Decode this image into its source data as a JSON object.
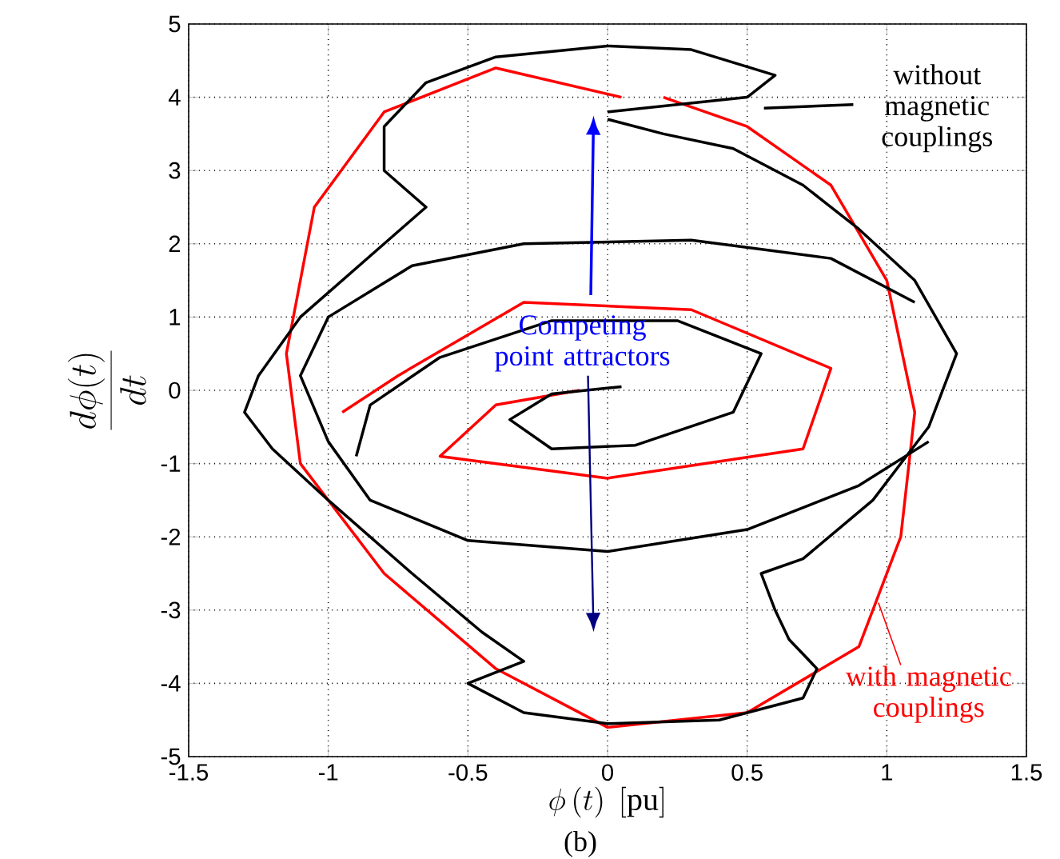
{
  "chart_data": {
    "type": "line",
    "xlabel": "\\phi\\left(t\\right)\\ [\\mathrm{pu}]",
    "ylabel": "\\frac{d\\phi(t)}{dt}",
    "xlim": [
      -1.5,
      1.5
    ],
    "ylim": [
      -5,
      5
    ],
    "xticks": [
      -1.5,
      -1,
      -0.5,
      0,
      0.5,
      1,
      1.5
    ],
    "yticks": [
      -5,
      -4,
      -3,
      -2,
      -1,
      0,
      1,
      2,
      3,
      4,
      5
    ],
    "grid": true,
    "line_style": "solid",
    "annotations": [
      "without magnetic couplings",
      {
        "text": "with magnetic couplings",
        "x": 0.97,
        "y": -2.9
      },
      "Competing point attractors",
      "(b)"
    ],
    "series": [
      {
        "color": "#ff0000",
        "x": [
          0.05,
          -0.4,
          -0.8,
          -1.05,
          -1.15,
          -1.1,
          -0.8,
          -0.4,
          0,
          0.5,
          0.9,
          1.05,
          1.1,
          1.0,
          0.8,
          0.5,
          0.2,
          null,
          -0.95,
          -0.75,
          -0.3,
          0.3,
          0.8,
          0.7,
          0,
          -0.6,
          -0.4,
          -0.1
        ],
        "values": [
          4.0,
          4.4,
          3.8,
          2.5,
          0.5,
          -1.0,
          -2.5,
          -3.8,
          -4.6,
          -4.4,
          -3.5,
          -2.0,
          -0.3,
          1.5,
          2.8,
          3.6,
          4.0,
          null,
          -0.3,
          0.2,
          1.2,
          1.1,
          0.3,
          -0.8,
          -1.2,
          -0.9,
          -0.2,
          0.0
        ]
      },
      {
        "color": "#000000",
        "x": [
          0,
          0.5,
          0.6,
          0.3,
          0,
          -0.4,
          -0.65,
          -0.8,
          -0.8,
          -0.65,
          -0.8,
          -1.1,
          -1.25,
          -1.3,
          -1.2,
          -1.0,
          -0.7,
          -0.45,
          -0.3,
          -0.5,
          -0.3,
          0,
          0.4,
          0.7,
          0.75,
          0.65,
          0.6,
          0.55,
          0.7,
          0.95,
          1.15,
          1.25,
          1.1,
          0.9,
          0.7,
          0.45,
          0.2,
          0,
          null,
          1.1,
          0.8,
          0.3,
          -0.3,
          -0.7,
          -1.0,
          -1.1,
          -1.0,
          -0.85,
          -0.5,
          0,
          0.5,
          0.9,
          1.15,
          null,
          -0.9,
          -0.85,
          -0.6,
          -0.2,
          0.25,
          0.55,
          0.45,
          0.1,
          -0.2,
          -0.35,
          -0.2,
          0.05
        ],
        "values": [
          3.8,
          4.0,
          4.3,
          4.65,
          4.7,
          4.55,
          4.2,
          3.6,
          3.0,
          2.5,
          2.0,
          1.0,
          0.2,
          -0.3,
          -0.8,
          -1.5,
          -2.5,
          -3.3,
          -3.7,
          -4.0,
          -4.4,
          -4.55,
          -4.5,
          -4.2,
          -3.8,
          -3.4,
          -3.0,
          -2.5,
          -2.3,
          -1.5,
          -0.5,
          0.5,
          1.5,
          2.2,
          2.8,
          3.3,
          3.5,
          3.7,
          null,
          1.2,
          1.8,
          2.05,
          2.0,
          1.7,
          1.0,
          0.2,
          -0.7,
          -1.5,
          -2.05,
          -2.2,
          -1.9,
          -1.3,
          -0.7,
          null,
          -0.9,
          -0.2,
          0.45,
          0.95,
          0.95,
          0.5,
          -0.3,
          -0.75,
          -0.8,
          -0.4,
          -0.05,
          0.05
        ]
      }
    ]
  }
}
